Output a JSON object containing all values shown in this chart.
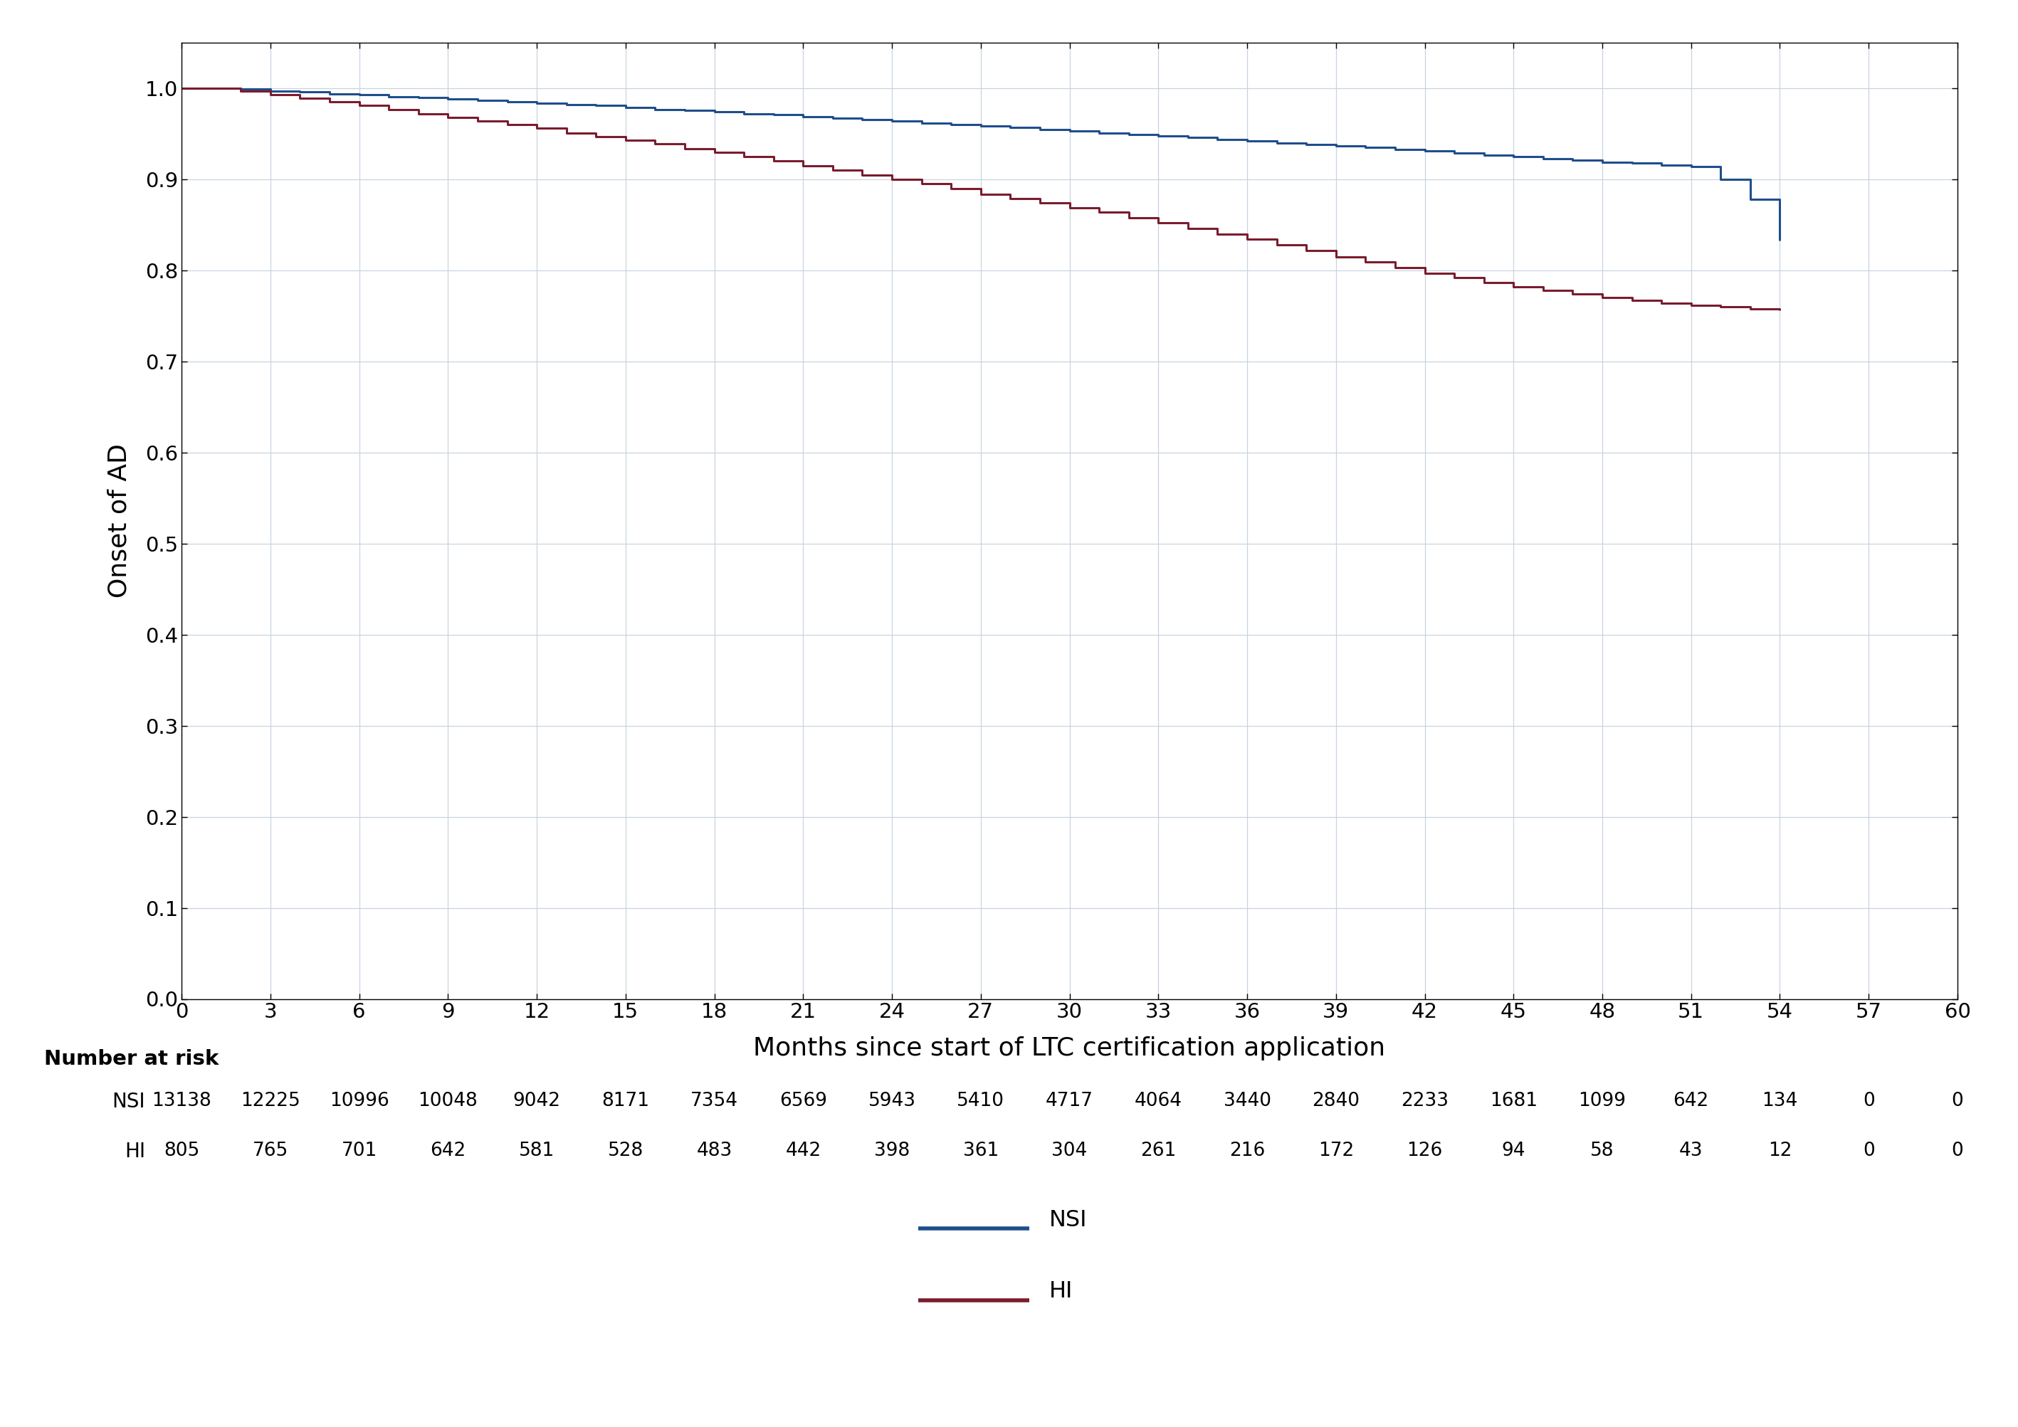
{
  "nsi_times": [
    0,
    1,
    2,
    3,
    4,
    5,
    6,
    7,
    8,
    9,
    10,
    11,
    12,
    13,
    14,
    15,
    16,
    17,
    18,
    19,
    20,
    21,
    22,
    23,
    24,
    25,
    26,
    27,
    28,
    29,
    30,
    31,
    32,
    33,
    34,
    35,
    36,
    37,
    38,
    39,
    40,
    41,
    42,
    43,
    44,
    45,
    46,
    47,
    48,
    49,
    50,
    51,
    52,
    53,
    54
  ],
  "nsi_surv": [
    1.0,
    1.0,
    0.999,
    0.997,
    0.996,
    0.994,
    0.993,
    0.991,
    0.99,
    0.988,
    0.987,
    0.985,
    0.984,
    0.982,
    0.981,
    0.979,
    0.977,
    0.976,
    0.974,
    0.972,
    0.971,
    0.969,
    0.967,
    0.966,
    0.964,
    0.962,
    0.96,
    0.959,
    0.957,
    0.955,
    0.953,
    0.951,
    0.949,
    0.948,
    0.946,
    0.944,
    0.942,
    0.94,
    0.938,
    0.937,
    0.935,
    0.933,
    0.931,
    0.929,
    0.927,
    0.925,
    0.923,
    0.921,
    0.919,
    0.918,
    0.916,
    0.914,
    0.9,
    0.878,
    0.833
  ],
  "hi_times": [
    0,
    1,
    2,
    3,
    4,
    5,
    6,
    7,
    8,
    9,
    10,
    11,
    12,
    13,
    14,
    15,
    16,
    17,
    18,
    19,
    20,
    21,
    22,
    23,
    24,
    25,
    26,
    27,
    28,
    29,
    30,
    31,
    32,
    33,
    34,
    35,
    36,
    37,
    38,
    39,
    40,
    41,
    42,
    43,
    44,
    45,
    46,
    47,
    48,
    49,
    50,
    51,
    52,
    53,
    54
  ],
  "hi_surv": [
    1.0,
    1.0,
    0.997,
    0.993,
    0.989,
    0.985,
    0.981,
    0.977,
    0.972,
    0.968,
    0.964,
    0.96,
    0.956,
    0.951,
    0.947,
    0.943,
    0.939,
    0.934,
    0.93,
    0.925,
    0.92,
    0.915,
    0.91,
    0.905,
    0.9,
    0.895,
    0.89,
    0.884,
    0.879,
    0.874,
    0.869,
    0.864,
    0.858,
    0.852,
    0.846,
    0.84,
    0.834,
    0.828,
    0.822,
    0.815,
    0.809,
    0.803,
    0.797,
    0.792,
    0.787,
    0.782,
    0.778,
    0.774,
    0.77,
    0.767,
    0.764,
    0.762,
    0.76,
    0.758,
    0.756
  ],
  "nsi_color": "#1F4E8C",
  "hi_color": "#7B1C2E",
  "xlabel": "Months since start of LTC certification application",
  "ylabel": "Onset of AD",
  "xlim": [
    0,
    60
  ],
  "ylim": [
    0.0,
    1.05
  ],
  "xticks": [
    0,
    3,
    6,
    9,
    12,
    15,
    18,
    21,
    24,
    27,
    30,
    33,
    36,
    39,
    42,
    45,
    48,
    51,
    54,
    57,
    60
  ],
  "yticks": [
    0.0,
    0.1,
    0.2,
    0.3,
    0.4,
    0.5,
    0.6,
    0.7,
    0.8,
    0.9,
    1.0
  ],
  "risk_label": "Number at risk",
  "nsi_label": "NSI",
  "hi_label": "HI",
  "nsi_risk": [
    13138,
    12225,
    10996,
    10048,
    9042,
    8171,
    7354,
    6569,
    5943,
    5410,
    4717,
    4064,
    3440,
    2840,
    2233,
    1681,
    1099,
    642,
    134,
    0,
    0
  ],
  "hi_risk": [
    805,
    765,
    701,
    642,
    581,
    528,
    483,
    442,
    398,
    361,
    304,
    261,
    216,
    172,
    126,
    94,
    58,
    43,
    12,
    0,
    0
  ],
  "risk_times": [
    0,
    3,
    6,
    9,
    12,
    15,
    18,
    21,
    24,
    27,
    30,
    33,
    36,
    39,
    42,
    45,
    48,
    51,
    54,
    57,
    60
  ],
  "bg_color": "#FFFFFF",
  "plot_bg_color": "#FFFFFF",
  "grid_color": "#C8D4E0",
  "line_width": 2.2,
  "font_family": "DejaVu Sans"
}
